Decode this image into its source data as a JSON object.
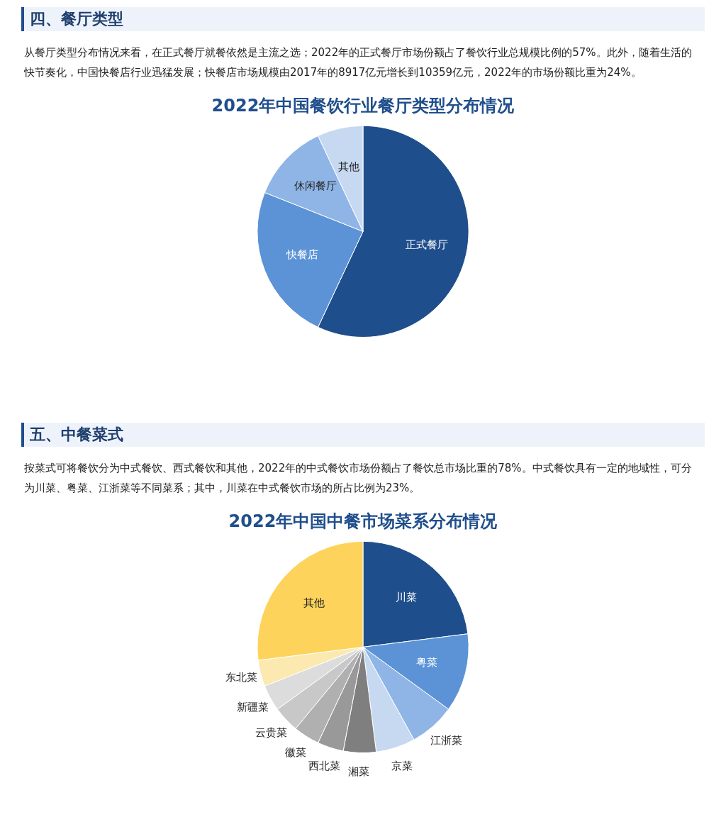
{
  "chart_data": [
    {
      "type": "pie",
      "title": "2022年中国餐饮行业餐厅类型分布情况",
      "annotations": [
        "四、餐厅类型",
        "从餐厅类型分布情况来看，在正式餐厅就餐依然是主流之选；2022年的正式餐厅市场份额占了餐饮行业总规模比例的57%。此外，随着生活的快节奏化，中国快餐店行业迅猛发展；快餐店市场规模由2017年的8917亿元增长到10359亿元，2022年的市场份额比重为24%。"
      ],
      "categories": [
        "正式餐厅",
        "快餐店",
        "休闲餐厅",
        "其他"
      ],
      "values": [
        57,
        24,
        12,
        7
      ],
      "colors": [
        "#1f4e8c",
        "#5b93d6",
        "#8fb5e6",
        "#c6d9f1"
      ],
      "legend": false
    },
    {
      "type": "pie",
      "title": "2022年中国中餐市场菜系分布情况",
      "annotations": [
        "五、中餐菜式",
        "按菜式可将餐饮分为中式餐饮、西式餐饮和其他，2022年的中式餐饮市场份额占了餐饮总市场比重的78%。中式餐饮具有一定的地域性，可分为川菜、粤菜、江浙菜等不同菜系；其中，川菜在中式餐饮市场的所占比例为23%。"
      ],
      "categories": [
        "川菜",
        "粤菜",
        "江浙菜",
        "京菜",
        "湘菜",
        "西北菜",
        "徽菜",
        "云贵菜",
        "新疆菜",
        "东北菜",
        "其他"
      ],
      "values": [
        23,
        12,
        7,
        6,
        5,
        4,
        4,
        4,
        4,
        4,
        27
      ],
      "colors": [
        "#1f4e8c",
        "#5b93d6",
        "#8fb5e6",
        "#c6d9f1",
        "#7f7f7f",
        "#999999",
        "#b0b0b0",
        "#c8c8c8",
        "#dcdcdc",
        "#fce9b0",
        "#fdd35c"
      ],
      "legend": false
    }
  ]
}
